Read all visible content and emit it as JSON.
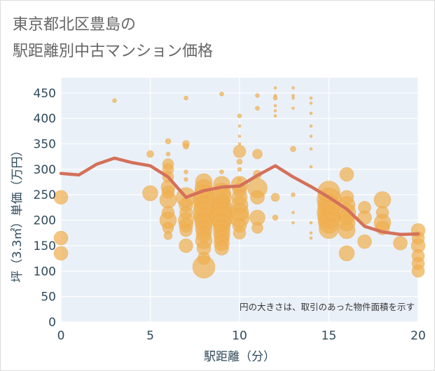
{
  "chart_data": {
    "type": "scatter",
    "title_lines": [
      "東京都北区豊島の",
      "駅距離別中古マンション価格"
    ],
    "xlabel": "駅距離（分）",
    "ylabel": "坪（3.3㎡）単価（万円）",
    "xlim": [
      0,
      20
    ],
    "ylim": [
      0,
      480
    ],
    "x_ticks": [
      0,
      5,
      10,
      15,
      20
    ],
    "y_ticks": [
      0,
      50,
      100,
      150,
      200,
      250,
      300,
      350,
      400,
      450
    ],
    "grid": true,
    "annotation": "円の大きさは、取引のあった物件面積を示す",
    "colors": {
      "bubble": "#f0b050",
      "line": "#d4705a",
      "plot_bg": "#eaf0f8",
      "grid": "#ffffff"
    },
    "series": [
      {
        "kind": "bubble",
        "points": [
          [
            0,
            245,
            10
          ],
          [
            0,
            165,
            10
          ],
          [
            0,
            135,
            10
          ],
          [
            3,
            435,
            3
          ],
          [
            5,
            330,
            5
          ],
          [
            5,
            253,
            11
          ],
          [
            6,
            355,
            4
          ],
          [
            6,
            330,
            3
          ],
          [
            6,
            310,
            8
          ],
          [
            6,
            300,
            8
          ],
          [
            6,
            285,
            8
          ],
          [
            6,
            265,
            10
          ],
          [
            6,
            255,
            9
          ],
          [
            6,
            240,
            12
          ],
          [
            6,
            215,
            9
          ],
          [
            6,
            200,
            12
          ],
          [
            6,
            185,
            8
          ],
          [
            6,
            170,
            6
          ],
          [
            7,
            440,
            3
          ],
          [
            7,
            350,
            5
          ],
          [
            7,
            345,
            4
          ],
          [
            7,
            295,
            3
          ],
          [
            7,
            280,
            3
          ],
          [
            7,
            245,
            14
          ],
          [
            7,
            230,
            10
          ],
          [
            7,
            215,
            9
          ],
          [
            7,
            200,
            11
          ],
          [
            7,
            190,
            10
          ],
          [
            7,
            180,
            9
          ],
          [
            7,
            150,
            10
          ],
          [
            8,
            275,
            12
          ],
          [
            8,
            262,
            13
          ],
          [
            8,
            250,
            14
          ],
          [
            8,
            240,
            15
          ],
          [
            8,
            228,
            14
          ],
          [
            8,
            215,
            16
          ],
          [
            8,
            205,
            14
          ],
          [
            8,
            195,
            13
          ],
          [
            8,
            183,
            12
          ],
          [
            8,
            172,
            11
          ],
          [
            8,
            160,
            12
          ],
          [
            8,
            145,
            10
          ],
          [
            8,
            125,
            9
          ],
          [
            8,
            108,
            16
          ],
          [
            9,
            448,
            3
          ],
          [
            9,
            295,
            3
          ],
          [
            9,
            270,
            12
          ],
          [
            9,
            255,
            13
          ],
          [
            9,
            245,
            14
          ],
          [
            9,
            235,
            12
          ],
          [
            9,
            225,
            14
          ],
          [
            9,
            215,
            15
          ],
          [
            9,
            205,
            16
          ],
          [
            9,
            195,
            13
          ],
          [
            9,
            185,
            12
          ],
          [
            9,
            175,
            12
          ],
          [
            9,
            165,
            11
          ],
          [
            9,
            155,
            11
          ],
          [
            9,
            145,
            10
          ],
          [
            10,
            405,
            3
          ],
          [
            10,
            385,
            2
          ],
          [
            10,
            365,
            2
          ],
          [
            10,
            350,
            2
          ],
          [
            10,
            335,
            9
          ],
          [
            10,
            315,
            4
          ],
          [
            10,
            300,
            3
          ],
          [
            10,
            280,
            3
          ],
          [
            10,
            270,
            12
          ],
          [
            10,
            260,
            10
          ],
          [
            10,
            245,
            11
          ],
          [
            10,
            230,
            12
          ],
          [
            10,
            215,
            13
          ],
          [
            10,
            205,
            14
          ],
          [
            10,
            190,
            10
          ],
          [
            10,
            175,
            9
          ],
          [
            11,
            445,
            3
          ],
          [
            11,
            420,
            3
          ],
          [
            11,
            330,
            7
          ],
          [
            11,
            290,
            6
          ],
          [
            11,
            263,
            14
          ],
          [
            11,
            245,
            10
          ],
          [
            11,
            205,
            11
          ],
          [
            11,
            185,
            8
          ],
          [
            12,
            460,
            2
          ],
          [
            12,
            445,
            2
          ],
          [
            12,
            440,
            3
          ],
          [
            12,
            425,
            2
          ],
          [
            12,
            415,
            2
          ],
          [
            12,
            405,
            2
          ],
          [
            12,
            245,
            6
          ],
          [
            12,
            205,
            4
          ],
          [
            13,
            460,
            2
          ],
          [
            13,
            445,
            2
          ],
          [
            13,
            440,
            2
          ],
          [
            13,
            420,
            2
          ],
          [
            13,
            340,
            4
          ],
          [
            13,
            250,
            3
          ],
          [
            13,
            215,
            2
          ],
          [
            13,
            195,
            2
          ],
          [
            14,
            440,
            2
          ],
          [
            14,
            430,
            2
          ],
          [
            14,
            410,
            2
          ],
          [
            14,
            385,
            2
          ],
          [
            14,
            365,
            2
          ],
          [
            14,
            340,
            2
          ],
          [
            14,
            305,
            2
          ],
          [
            14,
            195,
            2
          ],
          [
            14,
            175,
            2
          ],
          [
            14,
            165,
            2
          ],
          [
            15,
            255,
            16
          ],
          [
            15,
            240,
            17
          ],
          [
            15,
            228,
            16
          ],
          [
            15,
            215,
            17
          ],
          [
            15,
            205,
            16
          ],
          [
            15,
            195,
            15
          ],
          [
            15,
            183,
            14
          ],
          [
            16,
            290,
            10
          ],
          [
            16,
            245,
            10
          ],
          [
            16,
            230,
            12
          ],
          [
            16,
            215,
            13
          ],
          [
            16,
            205,
            11
          ],
          [
            16,
            195,
            12
          ],
          [
            16,
            180,
            12
          ],
          [
            16,
            135,
            11
          ],
          [
            17,
            225,
            9
          ],
          [
            17,
            205,
            10
          ],
          [
            17,
            158,
            10
          ],
          [
            18,
            240,
            12
          ],
          [
            18,
            215,
            9
          ],
          [
            18,
            195,
            12
          ],
          [
            18,
            185,
            10
          ],
          [
            19,
            155,
            10
          ],
          [
            20,
            180,
            10
          ],
          [
            20,
            165,
            9
          ],
          [
            20,
            150,
            10
          ],
          [
            20,
            130,
            9
          ],
          [
            20,
            115,
            9
          ],
          [
            20,
            100,
            9
          ]
        ]
      },
      {
        "kind": "line",
        "x": [
          0,
          1,
          2,
          3,
          4,
          5,
          6,
          7,
          8,
          9,
          10,
          11,
          12,
          13,
          14,
          15,
          16,
          17,
          18,
          19,
          20
        ],
        "y": [
          292,
          289,
          310,
          322,
          313,
          307,
          285,
          245,
          258,
          265,
          267,
          288,
          307,
          285,
          266,
          245,
          222,
          188,
          177,
          172,
          173
        ]
      }
    ]
  }
}
